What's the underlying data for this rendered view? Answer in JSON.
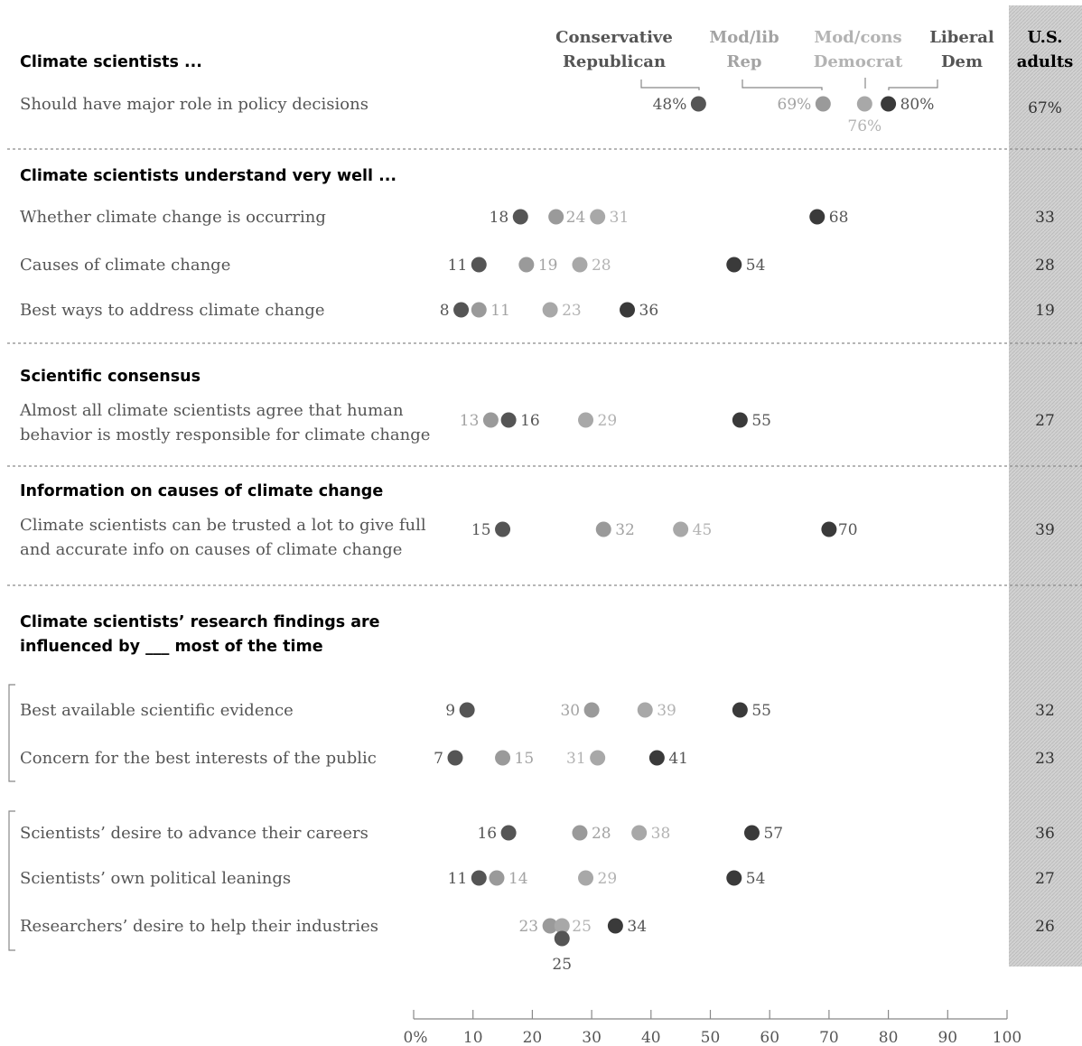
{
  "chart_data": {
    "type": "dot",
    "series": [
      {
        "name": "Conservative Republican",
        "display": [
          "Conservative",
          "Republican"
        ],
        "color": "#555555",
        "label_color": "#555555"
      },
      {
        "name": "Mod/lib Rep",
        "display": [
          "Mod/lib",
          "Rep"
        ],
        "color": "#9a9a9a",
        "label_color": "#a3a3a3"
      },
      {
        "name": "Mod/cons Democrat",
        "display": [
          "Mod/cons",
          "Democrat"
        ],
        "color": "#a8a8a8",
        "label_color": "#b3b3b3"
      },
      {
        "name": "Liberal Dem",
        "display": [
          "Liberal",
          "Dem"
        ],
        "color": "#3a3a3a",
        "label_color": "#555555"
      }
    ],
    "total_header": [
      "U.S.",
      "adults"
    ],
    "xlim": [
      0,
      100
    ],
    "xticks": [
      "0%",
      "10",
      "20",
      "30",
      "40",
      "50",
      "60",
      "70",
      "80",
      "90",
      "100"
    ],
    "sections": [
      {
        "title": [
          "Climate scientists ..."
        ],
        "rows": [
          {
            "label": [
              "Should have major role in policy decisions"
            ],
            "values": [
              48,
              69,
              76,
              80
            ],
            "display": [
              "48%",
              "69%",
              "76%",
              "80%"
            ],
            "us": "67%"
          }
        ]
      },
      {
        "title": [
          "Climate scientists understand very well ..."
        ],
        "rows": [
          {
            "label": [
              "Whether climate change is occurring"
            ],
            "values": [
              18,
              24,
              31,
              68
            ],
            "display": [
              "18",
              "24",
              "31",
              "68"
            ],
            "us": "33"
          },
          {
            "label": [
              "Causes of climate change"
            ],
            "values": [
              11,
              19,
              28,
              54
            ],
            "display": [
              "11",
              "19",
              "28",
              "54"
            ],
            "us": "28"
          },
          {
            "label": [
              "Best ways to address climate change"
            ],
            "values": [
              8,
              11,
              23,
              36
            ],
            "display": [
              "8",
              "11",
              "23",
              "36"
            ],
            "us": "19"
          }
        ]
      },
      {
        "title": [
          "Scientific consensus"
        ],
        "rows": [
          {
            "label": [
              "Almost all climate scientists agree that human",
              "behavior is mostly responsible for climate change"
            ],
            "values": [
              16,
              13,
              29,
              55
            ],
            "display": [
              "16",
              "13",
              "29",
              "55"
            ],
            "us": "27"
          }
        ]
      },
      {
        "title": [
          "Information on causes of climate change"
        ],
        "rows": [
          {
            "label": [
              "Climate scientists can be trusted a lot to give full",
              "and accurate info on causes of climate change"
            ],
            "values": [
              15,
              32,
              45,
              70
            ],
            "display": [
              "15",
              "32",
              "45",
              "70"
            ],
            "us": "39"
          }
        ]
      },
      {
        "title": [
          "Climate scientists’ research findings are",
          "influenced by ___ most of the time"
        ],
        "rows": [
          {
            "label": [
              "Best available scientific evidence"
            ],
            "values": [
              9,
              30,
              39,
              55
            ],
            "display": [
              "9",
              "30",
              "39",
              "55"
            ],
            "us": "32"
          },
          {
            "label": [
              "Concern for the best interests of the public"
            ],
            "values": [
              7,
              15,
              31,
              41
            ],
            "display": [
              "7",
              "15",
              "31",
              "41"
            ],
            "us": "23"
          },
          {
            "label": [
              "Scientists’ desire to advance their careers"
            ],
            "values": [
              16,
              28,
              38,
              57
            ],
            "display": [
              "16",
              "28",
              "38",
              "57"
            ],
            "us": "36"
          },
          {
            "label": [
              "Scientists’ own political leanings"
            ],
            "values": [
              11,
              14,
              29,
              54
            ],
            "display": [
              "11",
              "14",
              "29",
              "54"
            ],
            "us": "27"
          },
          {
            "label": [
              "Researchers’ desire to help their industries"
            ],
            "values": [
              25,
              23,
              25,
              34
            ],
            "display": [
              "25",
              "23",
              "25",
              "34"
            ],
            "us": "26"
          }
        ]
      }
    ]
  }
}
